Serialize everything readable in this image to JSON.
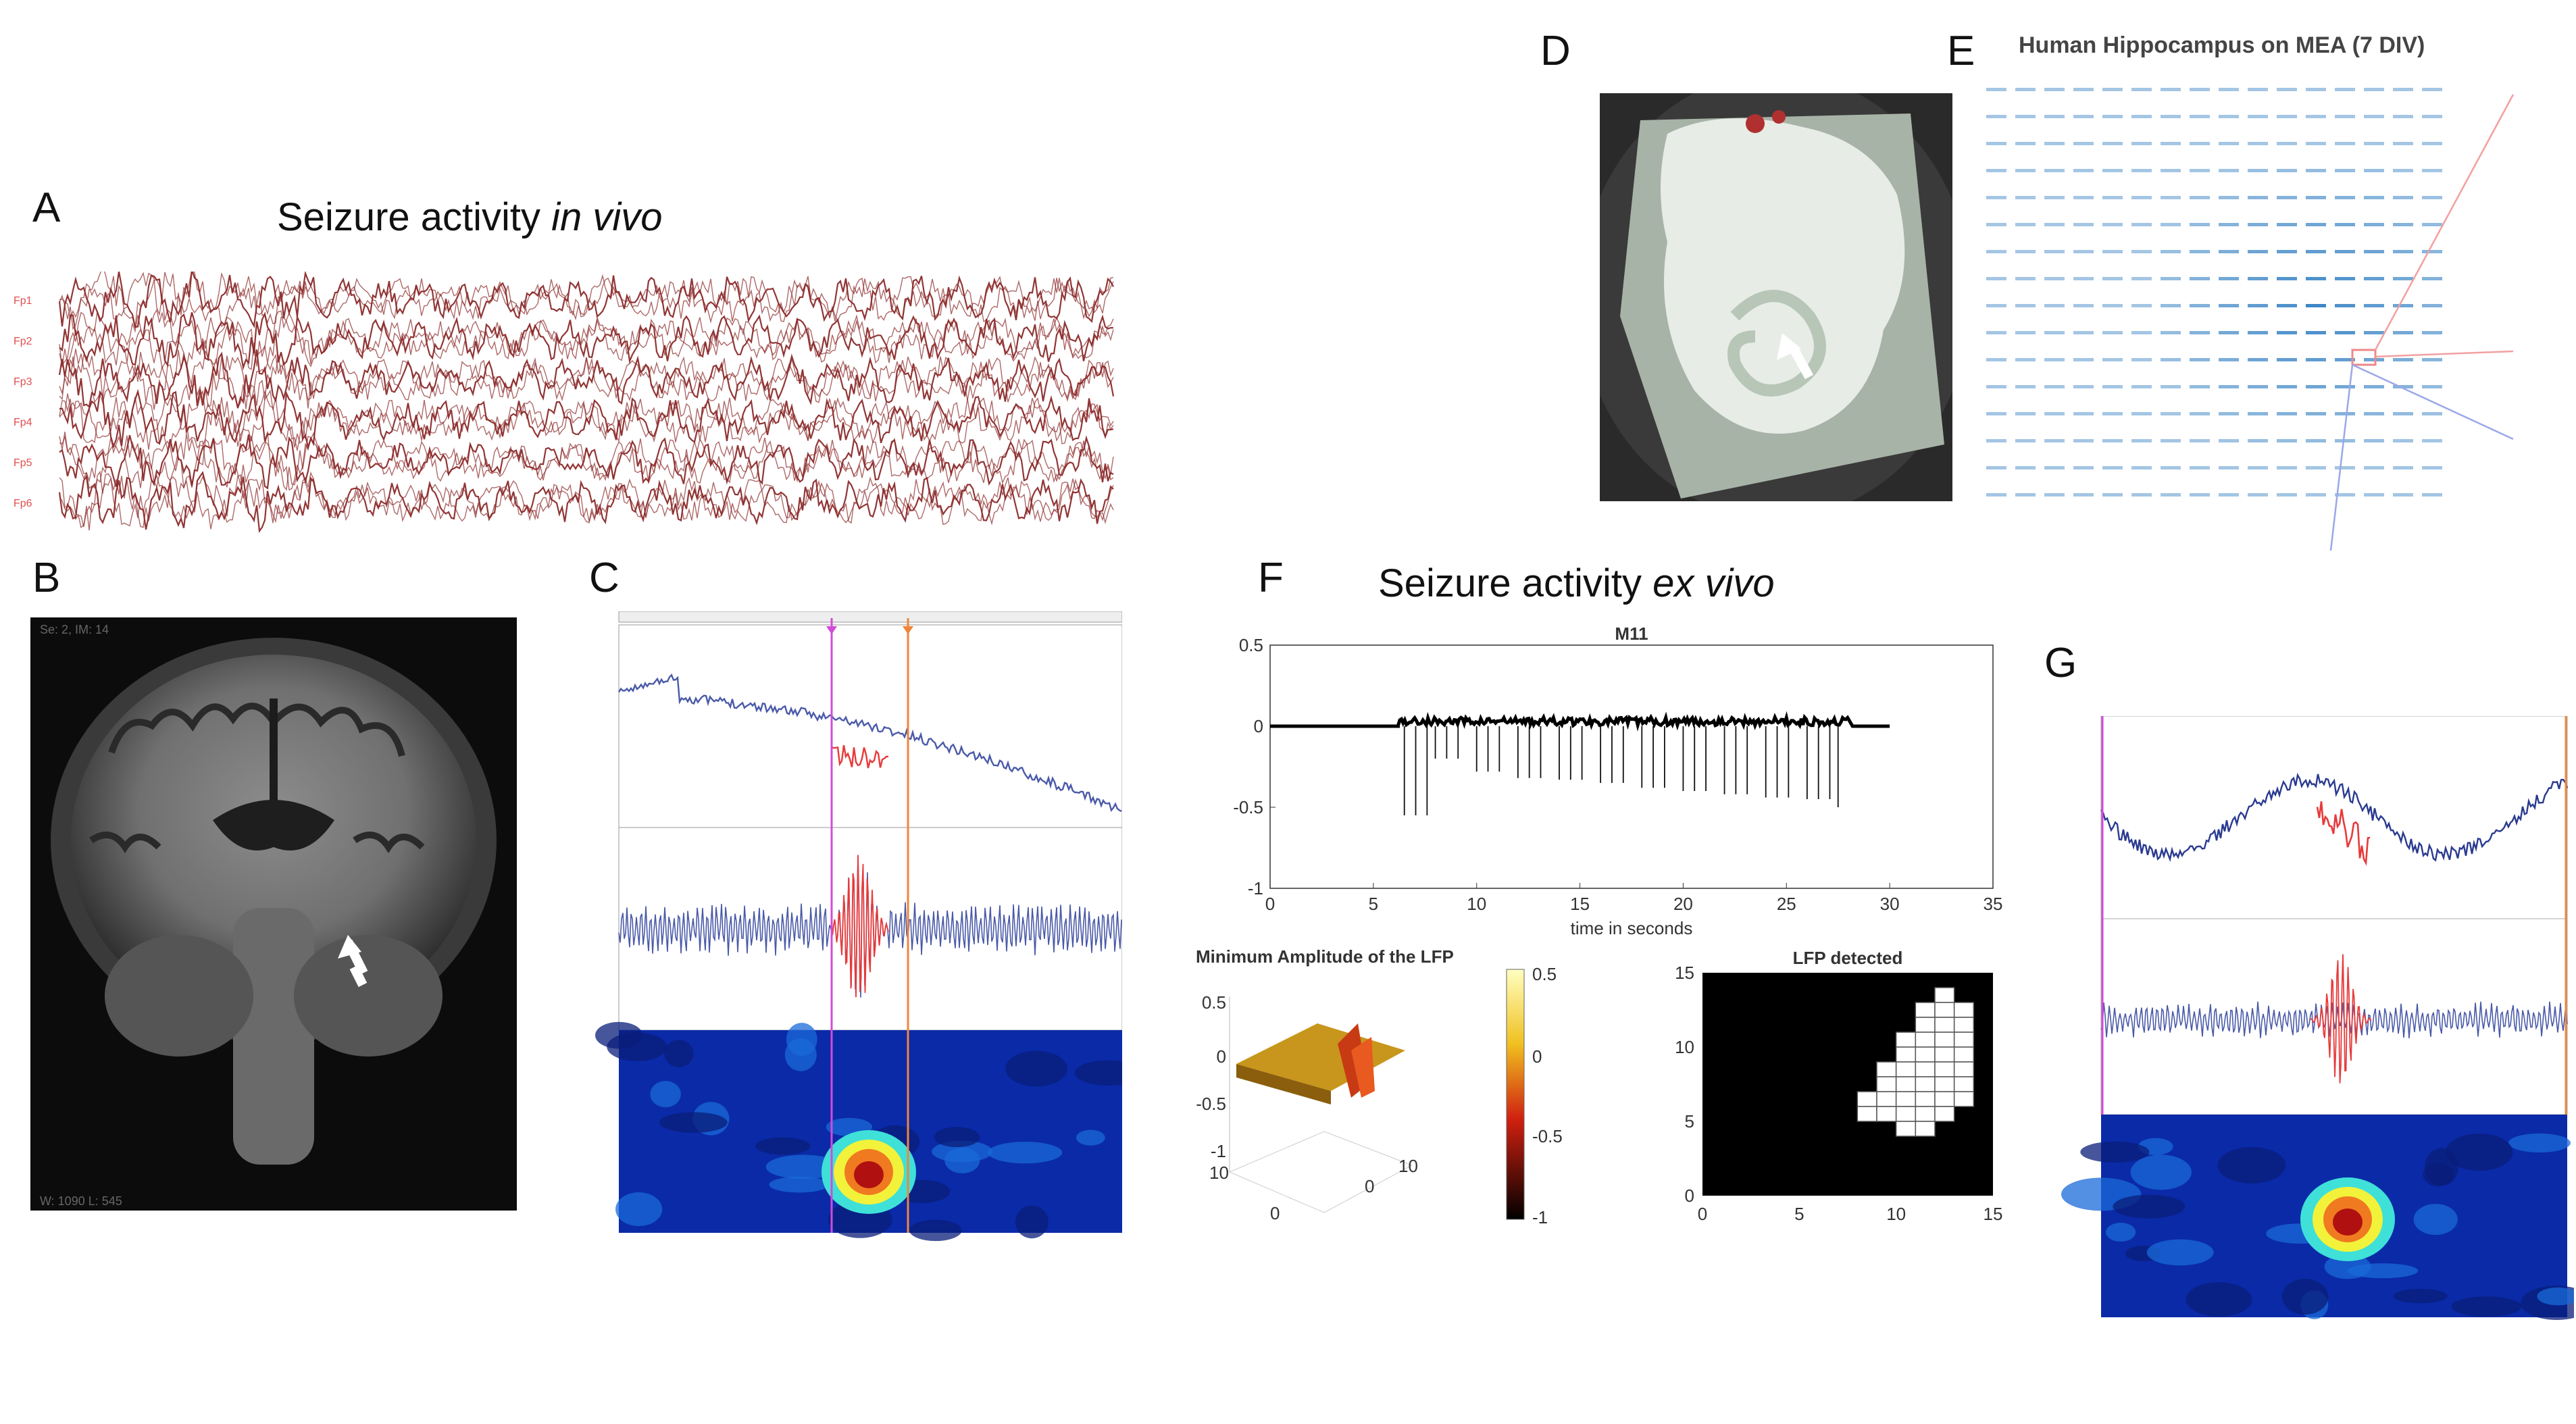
{
  "panels": {
    "A": {
      "letter": "A",
      "title_pre": "Seizure activity ",
      "title_italic": "in vivo"
    },
    "B": {
      "letter": "B"
    },
    "C": {
      "letter": "C"
    },
    "D": {
      "letter": "D"
    },
    "E": {
      "letter": "E",
      "title": "Human Hippocampus on MEA (7 DIV)"
    },
    "F": {
      "letter": "F",
      "title_pre": "Seizure activity ",
      "title_italic": "ex vivo"
    },
    "G": {
      "letter": "G"
    }
  },
  "colors": {
    "eeg": "#8b2a2a",
    "blue_trace": "#4a5aa8",
    "red_trace": "#e83a3a",
    "magenta_marker": "#d24bd8",
    "orange_marker": "#f0863a",
    "heat_bg": "#0a2aa8",
    "mea": "#3d86c6"
  },
  "chart_data": [
    {
      "type": "line",
      "title": "M11",
      "xlabel": "time in seconds",
      "xlim": [
        0,
        35
      ],
      "ylim": [
        -1,
        0.5
      ],
      "xticks": [
        "0",
        "5",
        "10",
        "15",
        "20",
        "25",
        "30",
        "35"
      ],
      "yticks": [
        "0.5",
        "0",
        "-0.5",
        "-1"
      ],
      "series": [
        {
          "x": [
            0,
            6.2,
            6.5,
            8,
            10,
            12,
            14,
            16,
            18,
            20,
            22,
            24,
            26,
            27.5,
            28,
            30
          ],
          "y": [
            0,
            0,
            -0.55,
            -0.2,
            -0.28,
            -0.32,
            -0.33,
            -0.35,
            -0.38,
            -0.4,
            -0.42,
            -0.44,
            -0.45,
            -0.5,
            -0.05,
            0
          ]
        }
      ]
    },
    {
      "type": "heatmap",
      "title": "Minimum Amplitude of the LFP",
      "zticks": [
        "0.5",
        "0",
        "-0.5",
        "-1"
      ],
      "colorbar_ticks": [
        "0.5",
        "0",
        "-0.5",
        "-1"
      ],
      "xticks": [
        "0",
        "10"
      ],
      "yticks": [
        "10",
        "0"
      ]
    },
    {
      "type": "heatmap",
      "title": "LFP detected",
      "xlim": [
        0,
        15
      ],
      "ylim": [
        0,
        15
      ],
      "xticks": [
        "0",
        "5",
        "10",
        "15"
      ],
      "yticks": [
        "15",
        "10",
        "5",
        "0"
      ],
      "detected_cells": [
        [
          13,
          14
        ],
        [
          12,
          13
        ],
        [
          13,
          13
        ],
        [
          14,
          13
        ],
        [
          12,
          12
        ],
        [
          13,
          12
        ],
        [
          14,
          12
        ],
        [
          11,
          11
        ],
        [
          12,
          11
        ],
        [
          13,
          11
        ],
        [
          14,
          11
        ],
        [
          11,
          10
        ],
        [
          12,
          10
        ],
        [
          13,
          10
        ],
        [
          14,
          10
        ],
        [
          10,
          9
        ],
        [
          11,
          9
        ],
        [
          12,
          9
        ],
        [
          13,
          9
        ],
        [
          14,
          9
        ],
        [
          10,
          8
        ],
        [
          11,
          8
        ],
        [
          12,
          8
        ],
        [
          13,
          8
        ],
        [
          14,
          8
        ],
        [
          9,
          7
        ],
        [
          10,
          7
        ],
        [
          11,
          7
        ],
        [
          12,
          7
        ],
        [
          13,
          7
        ],
        [
          14,
          7
        ],
        [
          9,
          6
        ],
        [
          10,
          6
        ],
        [
          11,
          6
        ],
        [
          12,
          6
        ],
        [
          13,
          6
        ],
        [
          11,
          5
        ],
        [
          12,
          5
        ]
      ]
    }
  ]
}
